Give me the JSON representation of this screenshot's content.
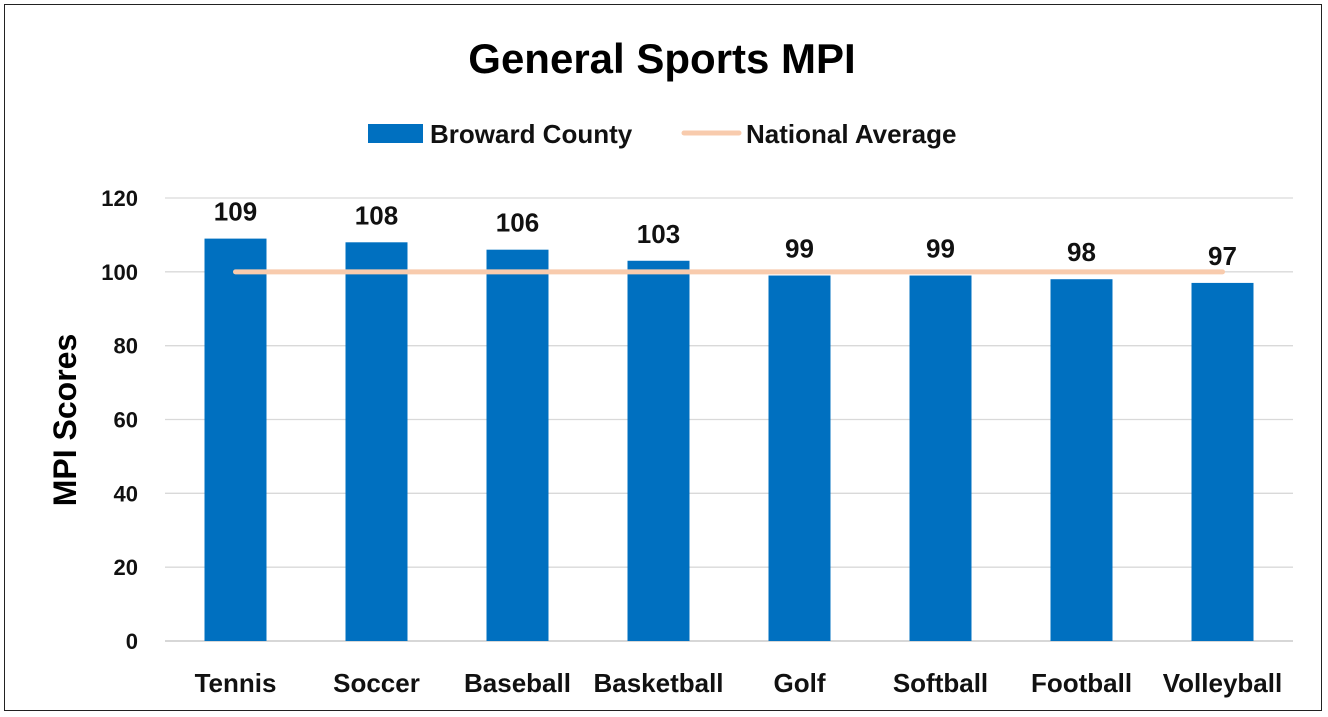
{
  "chart_data": {
    "type": "bar",
    "title": "General Sports MPI",
    "xlabel": "",
    "ylabel": "MPI Scores",
    "ylim": [
      0,
      120
    ],
    "yticks": [
      0,
      20,
      40,
      60,
      80,
      100,
      120
    ],
    "grid": true,
    "legend_position": "top-center",
    "categories": [
      "Tennis",
      "Soccer",
      "Baseball",
      "Basketball",
      "Golf",
      "Softball",
      "Football",
      "Volleyball"
    ],
    "series": [
      {
        "name": "Broward County",
        "kind": "bar",
        "color": "#0070C0",
        "values": [
          109,
          108,
          106,
          103,
          99,
          99,
          98,
          97
        ]
      },
      {
        "name": "National Average",
        "kind": "line",
        "color": "#F8CBAD",
        "values": [
          100,
          100,
          100,
          100,
          100,
          100,
          100,
          100
        ]
      }
    ]
  }
}
